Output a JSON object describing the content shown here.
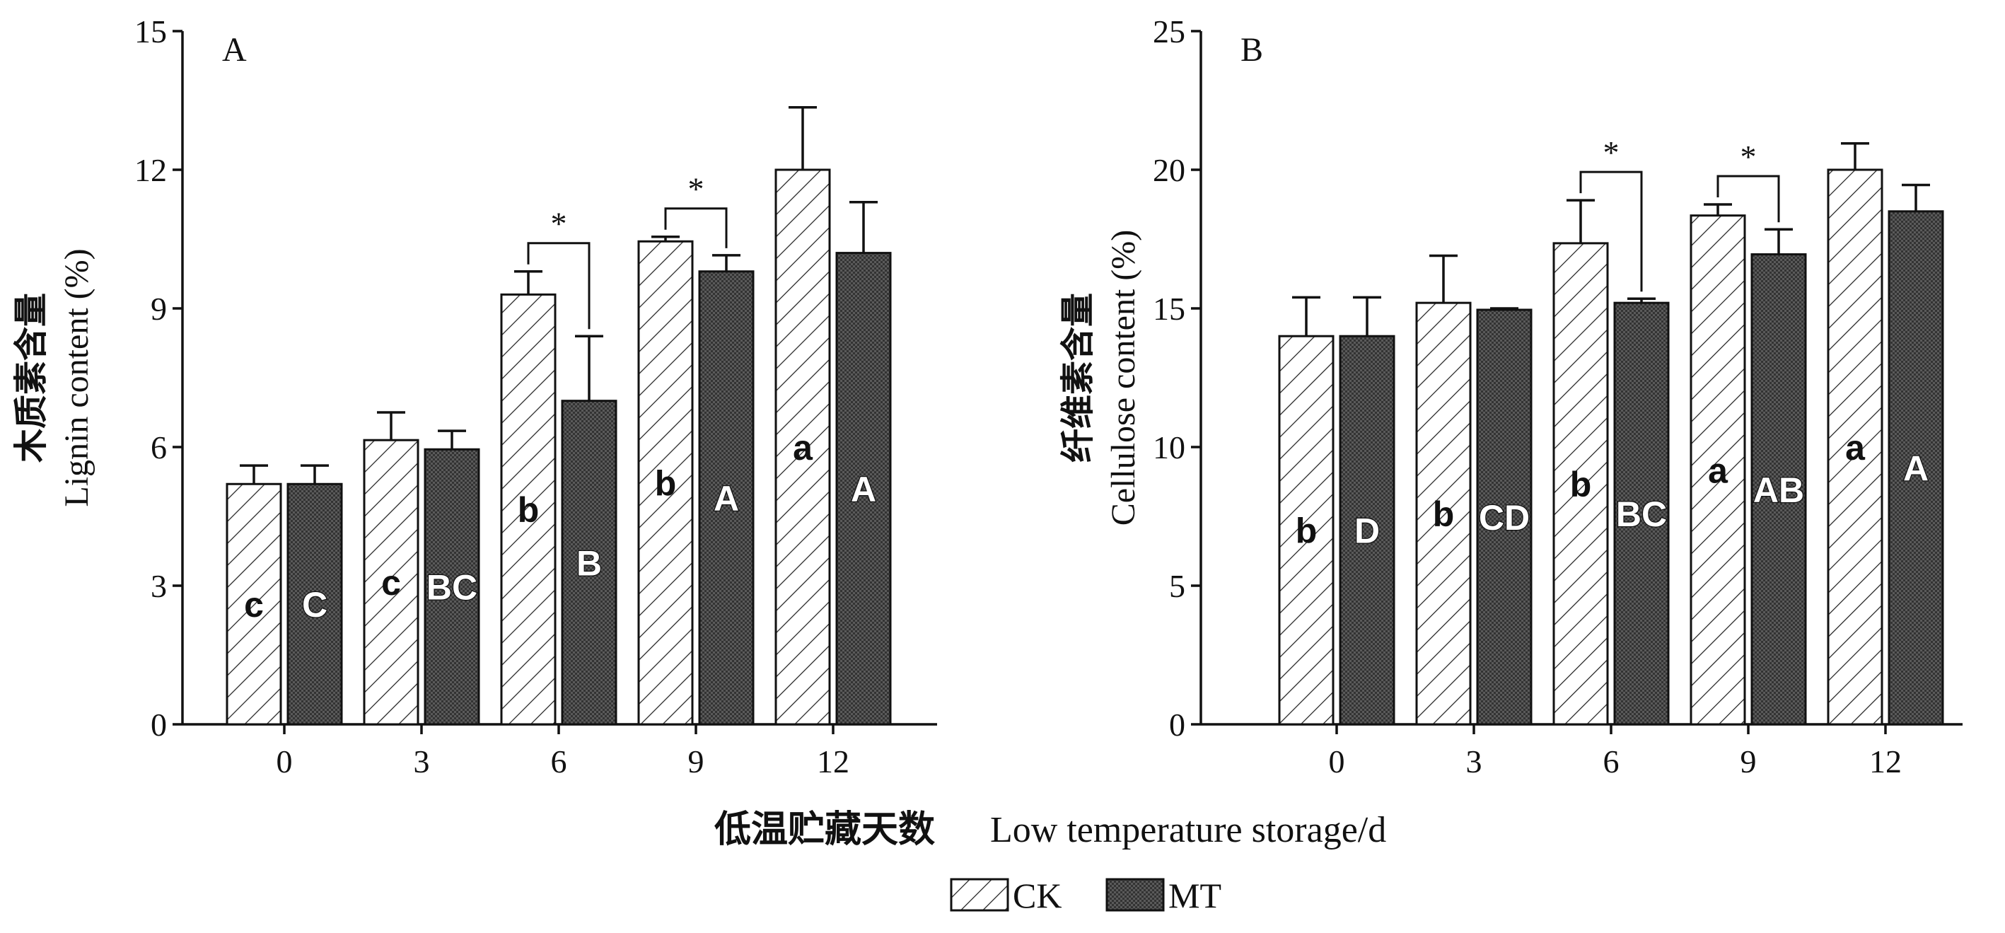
{
  "colors": {
    "ck_fill": "#ffffff",
    "mt_fill": "#555555",
    "line": "#111111"
  },
  "xaxis_title": {
    "zh": "低温贮藏天数",
    "en": "Low temperature storage/d"
  },
  "legend": [
    "CK",
    "MT"
  ],
  "chart_data": [
    {
      "type": "bar",
      "panel": "A",
      "ylabel_zh": "木质素含量",
      "ylabel_en": "Lignin content (%)",
      "ylim": [
        0,
        15
      ],
      "yticks": [
        0,
        3,
        6,
        9,
        12,
        15
      ],
      "categories": [
        "0",
        "3",
        "6",
        "9",
        "12"
      ],
      "series": [
        {
          "name": "CK",
          "values": [
            5.2,
            6.15,
            9.3,
            10.45,
            12.0
          ],
          "errors": [
            0.4,
            0.6,
            0.5,
            0.1,
            1.35
          ],
          "letters": [
            "c",
            "c",
            "b",
            "b",
            "a"
          ]
        },
        {
          "name": "MT",
          "values": [
            5.2,
            5.95,
            7.0,
            9.8,
            10.2
          ],
          "errors": [
            0.4,
            0.4,
            1.4,
            0.35,
            1.1
          ],
          "letters": [
            "C",
            "BC",
            "B",
            "A",
            "A"
          ]
        }
      ],
      "significance": [
        {
          "category": "6",
          "label": "*"
        },
        {
          "category": "9",
          "label": "*"
        }
      ]
    },
    {
      "type": "bar",
      "panel": "B",
      "ylabel_zh": "纤维素含量",
      "ylabel_en": "Cellulose content (%)",
      "ylim": [
        0,
        25
      ],
      "yticks": [
        0,
        5,
        10,
        15,
        20,
        25
      ],
      "categories": [
        "0",
        "3",
        "6",
        "9",
        "12"
      ],
      "series": [
        {
          "name": "CK",
          "values": [
            14.0,
            15.2,
            17.35,
            18.35,
            20.0
          ],
          "errors": [
            1.4,
            1.7,
            1.55,
            0.4,
            0.95
          ],
          "letters": [
            "b",
            "b",
            "b",
            "a",
            "a"
          ]
        },
        {
          "name": "MT",
          "values": [
            14.0,
            14.95,
            15.2,
            16.95,
            18.5
          ],
          "errors": [
            1.4,
            0.05,
            0.15,
            0.9,
            0.95
          ],
          "letters": [
            "D",
            "CD",
            "BC",
            "AB",
            "A"
          ]
        }
      ],
      "significance": [
        {
          "category": "6",
          "label": "*"
        },
        {
          "category": "9",
          "label": "*"
        }
      ]
    }
  ]
}
